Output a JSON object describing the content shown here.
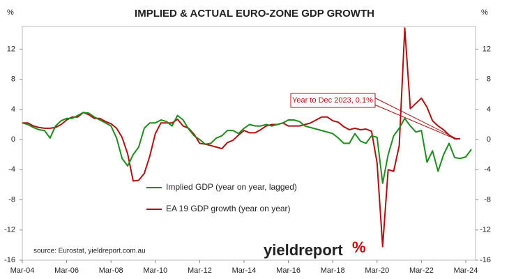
{
  "chart_data": {
    "type": "line",
    "title": "IMPLIED & ACTUAL EURO-ZONE GDP GROWTH",
    "y_unit": "%",
    "y2_unit": "%",
    "source": "source: Eurostat, yieldreport.com.au",
    "logo": {
      "text": "yieldreport",
      "symbol": "%"
    },
    "annotation": "Year to Dec 2023, 0.1%",
    "categories": [
      "Mar-04",
      null,
      null,
      null,
      null,
      null,
      null,
      null,
      "Mar-06",
      null,
      null,
      null,
      null,
      null,
      null,
      null,
      "Mar-08",
      null,
      null,
      null,
      null,
      null,
      null,
      null,
      "Mar-10",
      null,
      null,
      null,
      null,
      null,
      null,
      null,
      "Mar-12",
      null,
      null,
      null,
      null,
      null,
      null,
      null,
      "Mar-14",
      null,
      null,
      null,
      null,
      null,
      null,
      null,
      "Mar-16",
      null,
      null,
      null,
      null,
      null,
      null,
      null,
      "Mar-18",
      null,
      null,
      null,
      null,
      null,
      null,
      null,
      "Mar-20",
      null,
      null,
      null,
      null,
      null,
      null,
      null,
      "Mar-22",
      null,
      null,
      null,
      null,
      null,
      null,
      null,
      "Mar-24",
      null,
      null
    ],
    "series": [
      {
        "name": "Implied GDP (year on year, lagged)",
        "color": "#1e8c1e",
        "values": [
          2.2,
          2.0,
          1.6,
          1.3,
          1.2,
          0.2,
          1.8,
          2.5,
          2.8,
          2.8,
          3.2,
          3.6,
          3.5,
          3.0,
          2.6,
          2.2,
          1.8,
          0.2,
          -2.5,
          -3.5,
          -2.0,
          -1.0,
          1.5,
          2.2,
          2.2,
          2.6,
          2.4,
          1.8,
          3.2,
          2.6,
          1.4,
          0.5,
          0.0,
          -0.6,
          -0.5,
          0.2,
          0.5,
          1.2,
          1.2,
          0.8,
          1.5,
          2.0,
          1.8,
          1.8,
          2.0,
          1.8,
          2.0,
          2.2,
          2.6,
          2.6,
          2.4,
          1.8,
          1.6,
          1.4,
          1.2,
          1.0,
          0.8,
          0.2,
          -0.5,
          -0.5,
          0.8,
          -0.2,
          -0.5,
          0.5,
          0.3,
          -5.8,
          -2.0,
          0.5,
          1.5,
          2.8,
          1.8,
          1.0,
          1.2,
          -3.0,
          -1.5,
          -4.2,
          -2.0,
          -0.5,
          -2.4,
          -2.5,
          -2.3,
          -1.3,
          null
        ]
      },
      {
        "name": "EA 19 GDP growth (year on year)",
        "color": "#b01010",
        "values": [
          2.2,
          2.2,
          1.8,
          1.6,
          1.5,
          1.5,
          1.6,
          2.0,
          2.6,
          3.0,
          3.0,
          3.6,
          3.3,
          2.8,
          2.8,
          2.4,
          2.1,
          1.5,
          0.3,
          -1.9,
          -5.5,
          -5.4,
          -4.5,
          -2.2,
          0.8,
          2.2,
          2.2,
          2.2,
          2.7,
          1.8,
          1.5,
          0.7,
          -0.5,
          -0.6,
          -0.8,
          -1.0,
          -1.2,
          -0.4,
          -0.1,
          0.6,
          1.2,
          0.9,
          0.9,
          1.3,
          1.8,
          2.0,
          2.0,
          2.2,
          1.8,
          1.8,
          1.8,
          2.0,
          2.2,
          2.6,
          3.0,
          3.0,
          2.5,
          2.3,
          1.7,
          1.3,
          1.5,
          1.3,
          1.4,
          1.1,
          -3.1,
          -14.2,
          -4.0,
          -4.2,
          -0.8,
          14.8,
          4.1,
          4.8,
          5.5,
          4.3,
          2.5,
          1.8,
          1.3,
          0.6,
          0.1,
          0.1,
          null,
          null,
          null
        ]
      }
    ],
    "ylim": [
      -16,
      15
    ],
    "yticks": [
      -16,
      -12,
      -8,
      -4,
      0,
      4,
      8,
      12
    ],
    "y2lim": [
      -16,
      15
    ],
    "y2ticks": [
      -16,
      -12,
      -8,
      -4,
      0,
      4,
      8,
      12
    ],
    "grid": false
  }
}
